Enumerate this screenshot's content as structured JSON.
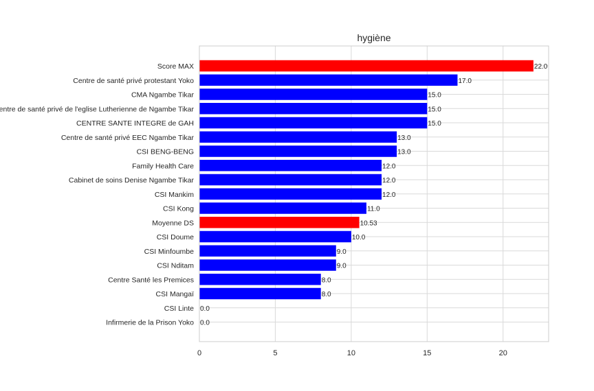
{
  "chart_data": {
    "type": "bar",
    "orientation": "horizontal",
    "title": "hygiène",
    "xlabel": "",
    "ylabel": "",
    "xlim": [
      0,
      23
    ],
    "xticks": [
      0,
      5,
      10,
      15,
      20
    ],
    "grid": true,
    "highlight_color": "#ff0000",
    "bar_color": "#0000ff",
    "bars": [
      {
        "label": "Score MAX",
        "value": 22.0,
        "value_label": "22.0",
        "highlight": true
      },
      {
        "label": "Centre de santé privé protestant Yoko",
        "value": 17.0,
        "value_label": "17.0",
        "highlight": false
      },
      {
        "label": "CMA Ngambe Tikar",
        "value": 15.0,
        "value_label": "15.0",
        "highlight": false
      },
      {
        "label": "Centre de santé privé  de l'eglise Lutherienne de Ngambe Tikar",
        "value": 15.0,
        "value_label": "15.0",
        "highlight": false
      },
      {
        "label": "CENTRE SANTE INTEGRE  de GAH",
        "value": 15.0,
        "value_label": "15.0",
        "highlight": false
      },
      {
        "label": "Centre de santé privé EEC Ngambe Tikar",
        "value": 13.0,
        "value_label": "13.0",
        "highlight": false
      },
      {
        "label": "CSI BENG-BENG",
        "value": 13.0,
        "value_label": "13.0",
        "highlight": false
      },
      {
        "label": "Family Health Care",
        "value": 12.0,
        "value_label": "12.0",
        "highlight": false
      },
      {
        "label": "Cabinet de soins Denise Ngambe Tikar",
        "value": 12.0,
        "value_label": "12.0",
        "highlight": false
      },
      {
        "label": "CSI Mankim",
        "value": 12.0,
        "value_label": "12.0",
        "highlight": false
      },
      {
        "label": "CSI Kong",
        "value": 11.0,
        "value_label": "11.0",
        "highlight": false
      },
      {
        "label": "Moyenne DS",
        "value": 10.53,
        "value_label": "10.53",
        "highlight": true
      },
      {
        "label": "CSI Doume",
        "value": 10.0,
        "value_label": "10.0",
        "highlight": false
      },
      {
        "label": "CSI Minfoumbe",
        "value": 9.0,
        "value_label": "9.0",
        "highlight": false
      },
      {
        "label": "CSI Nditam",
        "value": 9.0,
        "value_label": "9.0",
        "highlight": false
      },
      {
        "label": "Centre Santé les Premices",
        "value": 8.0,
        "value_label": "8.0",
        "highlight": false
      },
      {
        "label": "CSI Mangaï",
        "value": 8.0,
        "value_label": "8.0",
        "highlight": false
      },
      {
        "label": "CSI Linte",
        "value": 0.0,
        "value_label": "0.0",
        "highlight": false
      },
      {
        "label": "Infirmerie de la Prison Yoko",
        "value": 0.0,
        "value_label": "0.0",
        "highlight": false
      }
    ]
  }
}
